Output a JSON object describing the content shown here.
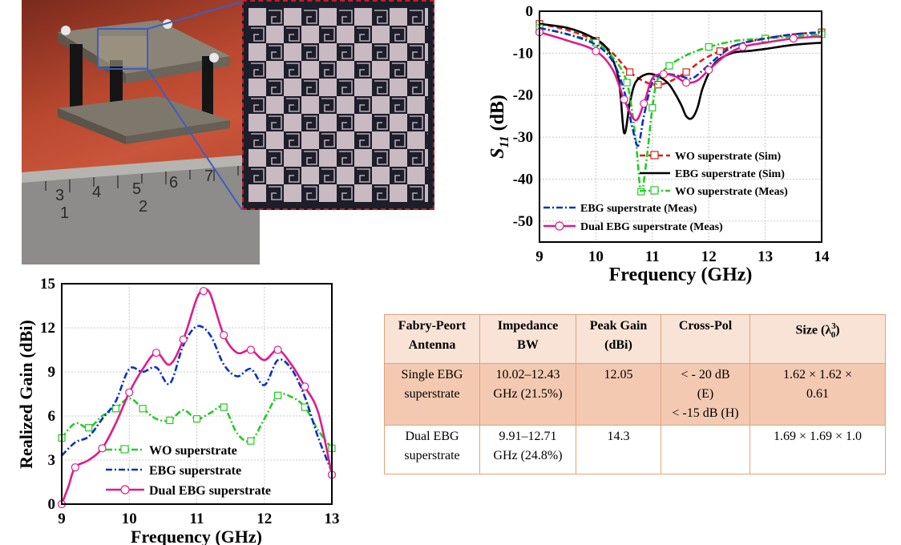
{
  "photo": {
    "ruler_numbers": [
      "3",
      "4",
      "5",
      "6",
      "7"
    ],
    "ruler_numbers_lower": [
      "1",
      "2"
    ]
  },
  "colors": {
    "wo": "#d62020",
    "ebg": "#000000",
    "wo_meas": "#22cc22",
    "ebg_meas": "#0a2fc8",
    "dual": "#dd1c8c",
    "table_header": "#f9e3d6",
    "table_row": "#f3c9b1",
    "table_border": "#e3a27a"
  },
  "chart_data": [
    {
      "type": "line",
      "xlabel": "Frequency (GHz)",
      "ylabel": "S11 (dB)",
      "ylabel_main": "S",
      "ylabel_sub": "11",
      "ylabel_unit": " (dB)",
      "xlim": [
        9,
        14
      ],
      "ylim": [
        -55,
        0
      ],
      "xticks": [
        "9",
        "10",
        "11",
        "12",
        "13",
        "14"
      ],
      "yticks": [
        "0",
        "-10",
        "-20",
        "-30",
        "-40",
        "-50"
      ],
      "grid": true,
      "series": [
        {
          "name": "WO superstrate (Sim)",
          "style": "dash",
          "color": "#d62020",
          "marker": "square-open",
          "x": [
            9,
            9.5,
            10,
            10.3,
            10.6,
            10.9,
            11.1,
            11.3,
            11.6,
            11.9,
            12.2,
            12.5,
            13,
            13.5,
            14
          ],
          "y": [
            -3,
            -4.5,
            -7,
            -10,
            -14.5,
            -17,
            -17.5,
            -16.8,
            -14.5,
            -11.5,
            -9.5,
            -8,
            -6.5,
            -5.5,
            -5
          ]
        },
        {
          "name": "EBG superstrate (Sim)",
          "style": "solid",
          "color": "#000000",
          "marker": "none",
          "x": [
            9,
            9.5,
            9.9,
            10.2,
            10.4,
            10.5,
            10.6,
            10.7,
            10.9,
            11.1,
            11.3,
            11.5,
            11.6,
            11.7,
            11.8,
            11.9,
            12.1,
            12.4,
            12.7,
            13,
            13.5,
            14
          ],
          "y": [
            -3,
            -4,
            -6,
            -9,
            -16,
            -29,
            -22,
            -17,
            -15,
            -15.5,
            -17.5,
            -22,
            -25,
            -25.5,
            -23,
            -18,
            -12.5,
            -10,
            -9.5,
            -9,
            -8,
            -7.5
          ]
        },
        {
          "name": "WO superstrate (Meas)",
          "style": "dashdot",
          "color": "#22cc22",
          "marker": "square-open",
          "x": [
            9,
            9.5,
            10,
            10.3,
            10.55,
            10.7,
            10.8,
            10.9,
            11.0,
            11.1,
            11.3,
            11.6,
            12,
            12.5,
            13,
            13.5,
            14
          ],
          "y": [
            -4,
            -5.5,
            -7.5,
            -11,
            -17,
            -30,
            -43,
            -35,
            -23,
            -16,
            -13,
            -10.5,
            -8.5,
            -7,
            -6.5,
            -6,
            -5.5
          ]
        },
        {
          "name": "EBG superstrate (Meas)",
          "style": "dashdot",
          "color": "#0a2fc8",
          "marker": "none",
          "x": [
            9,
            9.5,
            10,
            10.3,
            10.5,
            10.65,
            10.75,
            10.85,
            11.0,
            11.2,
            11.5,
            11.7,
            11.9,
            12.2,
            12.5,
            13,
            13.5,
            14
          ],
          "y": [
            -4,
            -5.5,
            -8,
            -12,
            -19,
            -28,
            -32,
            -25,
            -17,
            -15,
            -15.5,
            -16,
            -14,
            -10.5,
            -8,
            -6.5,
            -5.5,
            -5
          ]
        },
        {
          "name": "Dual EBG superstrate (Meas)",
          "style": "solid",
          "color": "#dd1c8c",
          "marker": "circle-open",
          "x": [
            9,
            9.5,
            10,
            10.3,
            10.5,
            10.7,
            10.85,
            11.0,
            11.2,
            11.4,
            11.6,
            11.8,
            12.0,
            12.3,
            12.6,
            13,
            13.5,
            14
          ],
          "y": [
            -5,
            -7,
            -9.5,
            -14,
            -21,
            -26,
            -22,
            -16,
            -15,
            -15.5,
            -17,
            -16.5,
            -14,
            -10.5,
            -8.5,
            -7.5,
            -6.5,
            -6
          ]
        }
      ]
    },
    {
      "type": "line",
      "xlabel": "Frequency (GHz)",
      "ylabel": "Realized Gain (dBi)",
      "xlim": [
        9,
        13
      ],
      "ylim": [
        0,
        15
      ],
      "xticks": [
        "9",
        "10",
        "11",
        "12",
        "13"
      ],
      "yticks": [
        "0",
        "3",
        "6",
        "9",
        "12",
        "15"
      ],
      "grid": true,
      "series": [
        {
          "name": "WO superstrate",
          "style": "dashdot",
          "color": "#22cc22",
          "marker": "square-open",
          "x": [
            9,
            9.2,
            9.4,
            9.6,
            9.8,
            10,
            10.2,
            10.4,
            10.6,
            10.8,
            11,
            11.2,
            11.4,
            11.6,
            11.8,
            12,
            12.2,
            12.4,
            12.6,
            12.8,
            13
          ],
          "y": [
            4.5,
            5.5,
            5.2,
            6,
            6.5,
            7.2,
            6.5,
            5.8,
            5.7,
            6.4,
            5.8,
            6.2,
            6.6,
            4.8,
            4.3,
            5.8,
            7.4,
            7.3,
            6.6,
            5,
            3.8
          ]
        },
        {
          "name": "EBG superstrate",
          "style": "dashdot",
          "color": "#0a2fc8",
          "marker": "none",
          "x": [
            9,
            9.2,
            9.4,
            9.6,
            9.8,
            10,
            10.2,
            10.4,
            10.6,
            10.8,
            11,
            11.2,
            11.4,
            11.6,
            11.8,
            12,
            12.2,
            12.4,
            12.6,
            12.8,
            13
          ],
          "y": [
            3.3,
            4.2,
            4.6,
            5.8,
            7,
            9.2,
            9,
            9.3,
            8.2,
            10.8,
            12.1,
            11.5,
            9.5,
            8.7,
            9.2,
            8.1,
            9.8,
            9.2,
            7.3,
            4.5,
            2.2
          ]
        },
        {
          "name": "Dual EBG superstrate",
          "style": "solid",
          "color": "#dd1c8c",
          "marker": "circle-open",
          "x": [
            9,
            9.1,
            9.2,
            9.4,
            9.6,
            9.8,
            10,
            10.2,
            10.4,
            10.6,
            10.8,
            11,
            11.1,
            11.2,
            11.4,
            11.6,
            11.8,
            12,
            12.2,
            12.4,
            12.6,
            12.8,
            13
          ],
          "y": [
            0,
            1.2,
            2.5,
            3,
            3.8,
            5.5,
            7.6,
            9.2,
            10.3,
            9.5,
            11.2,
            14,
            14.5,
            14.3,
            11.5,
            10.3,
            10.5,
            9.8,
            10.5,
            9.5,
            8,
            6.2,
            2
          ]
        }
      ]
    }
  ],
  "table": {
    "headers": [
      {
        "line1": "Fabry-Peort",
        "line2": "Antenna"
      },
      {
        "line1": "Impedance",
        "line2": "BW"
      },
      {
        "line1": "Peak Gain",
        "line2": "(dBi)"
      },
      {
        "line1": "Cross-Pol",
        "line2": ""
      },
      {
        "line1": "Size",
        "lambda": "λ",
        "sub": "0",
        "sup": "3"
      }
    ],
    "rows": [
      {
        "antenna_1": "Single EBG",
        "antenna_2": "superstrate",
        "bw_1": "10.02–12.43",
        "bw_2": "GHz (21.5%)",
        "gain": "12.05",
        "xpol_1": "< - 20 dB",
        "xpol_2": "(E)",
        "xpol_3": "< -15 dB (H)",
        "size_1": "1.62 × 1.62 ×",
        "size_2": "0.61"
      },
      {
        "antenna_1": "Dual EBG",
        "antenna_2": "superstrate",
        "bw_1": "9.91–12.71",
        "bw_2": "GHz (24.8%)",
        "gain": "14.3",
        "xpol_1": "",
        "xpol_2": "",
        "xpol_3": "",
        "size_1": "1.69 × 1.69 × 1.0",
        "size_2": ""
      }
    ]
  }
}
